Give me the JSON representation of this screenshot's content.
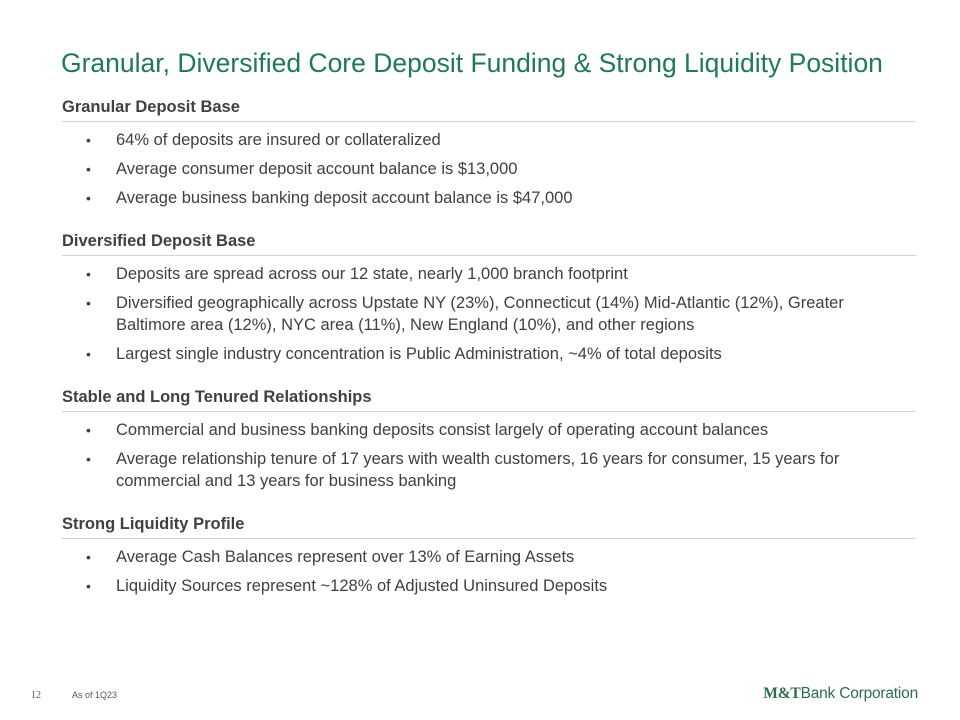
{
  "title": "Granular, Diversified Core Deposit Funding & Strong Liquidity Position",
  "sections": [
    {
      "heading": "Granular Deposit Base",
      "bullets": [
        "64% of deposits are insured or collateralized",
        "Average consumer deposit account balance is $13,000",
        "Average business banking deposit account balance is $47,000"
      ]
    },
    {
      "heading": "Diversified Deposit Base",
      "bullets": [
        "Deposits are spread across our 12 state, nearly 1,000 branch footprint",
        "Diversified geographically across Upstate NY (23%), Connecticut (14%) Mid-Atlantic (12%), Greater Baltimore area (12%), NYC area (11%), New England (10%), and other regions",
        "Largest single industry concentration is Public Administration, ~4% of total deposits"
      ]
    },
    {
      "heading": "Stable and Long Tenured Relationships",
      "bullets": [
        "Commercial and business banking deposits consist largely of operating account balances",
        "Average relationship tenure of 17 years with wealth customers, 16 years for consumer, 15 years for commercial and 13 years for business banking"
      ]
    },
    {
      "heading": "Strong Liquidity Profile",
      "bullets": [
        "Average Cash Balances represent over 13% of Earning Assets",
        "Liquidity Sources represent ~128% of Adjusted Uninsured Deposits"
      ]
    }
  ],
  "bullet_glyph": "•",
  "footer": {
    "page_number": "12",
    "note": "As of 1Q23",
    "logo_mark": "M&T",
    "logo_text": "Bank Corporation"
  },
  "colors": {
    "title": "#1f7a55",
    "body_text": "#404040",
    "rule": "#cdd6d2",
    "logo": "#2f6b4f"
  }
}
